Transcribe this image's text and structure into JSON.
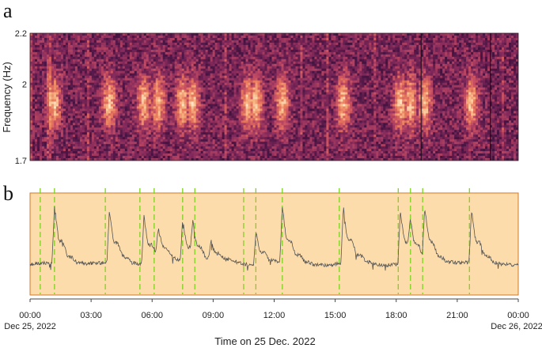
{
  "chart_data": [
    {
      "panel": "a",
      "type": "heatmap",
      "ylabel": "Frequency (Hz)",
      "ylim": [
        1.7,
        2.2
      ],
      "yticks": [
        "2.2",
        "2",
        "1.7"
      ],
      "xlim_hours": [
        0,
        24
      ],
      "colormap": [
        "#1a0a1c",
        "#4a1544",
        "#852a5c",
        "#c14a63",
        "#ea7a5c",
        "#f8b784",
        "#fce6c6"
      ],
      "bright_bursts_hours": [
        1.2,
        3.9,
        5.6,
        6.3,
        7.5,
        8.0,
        10.7,
        11.1,
        12.4,
        15.4,
        18.2,
        18.7,
        19.4,
        21.7
      ]
    },
    {
      "panel": "b",
      "type": "line",
      "x_tick_labels": [
        "00:00",
        "03:00",
        "06:00",
        "09:00",
        "12:00",
        "15:00",
        "18:00",
        "21:00",
        "00:00"
      ],
      "x_tick_hours": [
        0,
        3,
        6,
        9,
        12,
        15,
        18,
        21,
        24
      ],
      "x_date_labels": {
        "start": "Dec 25, 2022",
        "end": "Dec 26, 2022"
      },
      "xlabel": "Time on 25 Dec. 2022",
      "band_color": "#fcdcaa",
      "line_color": "#555555",
      "event_line_color": "#7ed321",
      "event_times_hours": [
        0.5,
        1.2,
        3.7,
        5.4,
        6.1,
        7.5,
        8.1,
        10.5,
        11.1,
        12.4,
        15.2,
        18.1,
        18.7,
        19.3,
        21.6
      ],
      "baseline_relative": 0.3,
      "peaks": [
        {
          "t": 1.2,
          "amp": 0.95
        },
        {
          "t": 3.9,
          "amp": 0.85
        },
        {
          "t": 5.6,
          "amp": 0.78
        },
        {
          "t": 6.3,
          "amp": 0.45
        },
        {
          "t": 7.5,
          "amp": 0.7
        },
        {
          "t": 8.0,
          "amp": 0.5
        },
        {
          "t": 8.9,
          "amp": 0.3
        },
        {
          "t": 11.1,
          "amp": 0.55
        },
        {
          "t": 12.4,
          "amp": 0.9
        },
        {
          "t": 15.4,
          "amp": 0.92
        },
        {
          "t": 18.2,
          "amp": 0.85
        },
        {
          "t": 18.7,
          "amp": 0.45
        },
        {
          "t": 19.4,
          "amp": 0.8
        },
        {
          "t": 21.7,
          "amp": 0.85
        }
      ]
    }
  ]
}
